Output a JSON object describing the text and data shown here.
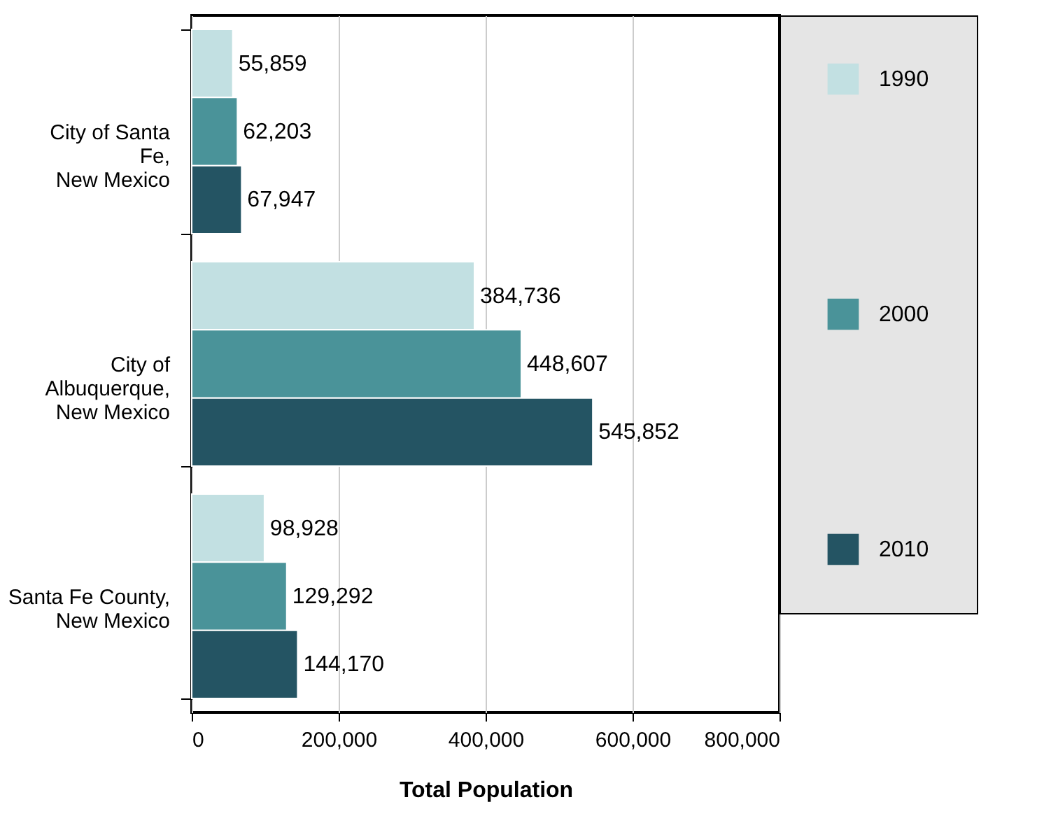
{
  "chart_data": {
    "type": "bar",
    "orientation": "horizontal",
    "xlabel": "Total Population",
    "categories": [
      "City of Santa Fe, New Mexico",
      "City of Albuquerque, New Mexico",
      "Santa Fe County, New Mexico"
    ],
    "series": [
      {
        "name": "1990",
        "color": "#c2e0e2",
        "values": [
          55859,
          384736,
          98928
        ],
        "value_labels": [
          "55,859",
          "384,736",
          "98,928"
        ]
      },
      {
        "name": "2000",
        "color": "#4a9399",
        "values": [
          62203,
          448607,
          129292
        ],
        "value_labels": [
          "62,203",
          "448,607",
          "129,292"
        ]
      },
      {
        "name": "2010",
        "color": "#245463",
        "values": [
          67947,
          545852,
          144170
        ],
        "value_labels": [
          "67,947",
          "545,852",
          "144,170"
        ]
      }
    ],
    "xlim": [
      0,
      800000
    ],
    "xticks": [
      0,
      {
        "value": 200000,
        "label": "200,000"
      },
      {
        "value": 400000,
        "label": "400,000"
      },
      {
        "value": 600000,
        "label": "600,000"
      },
      {
        "value": 800000,
        "label": "800,000"
      }
    ],
    "grid": "x",
    "legend": "right"
  }
}
